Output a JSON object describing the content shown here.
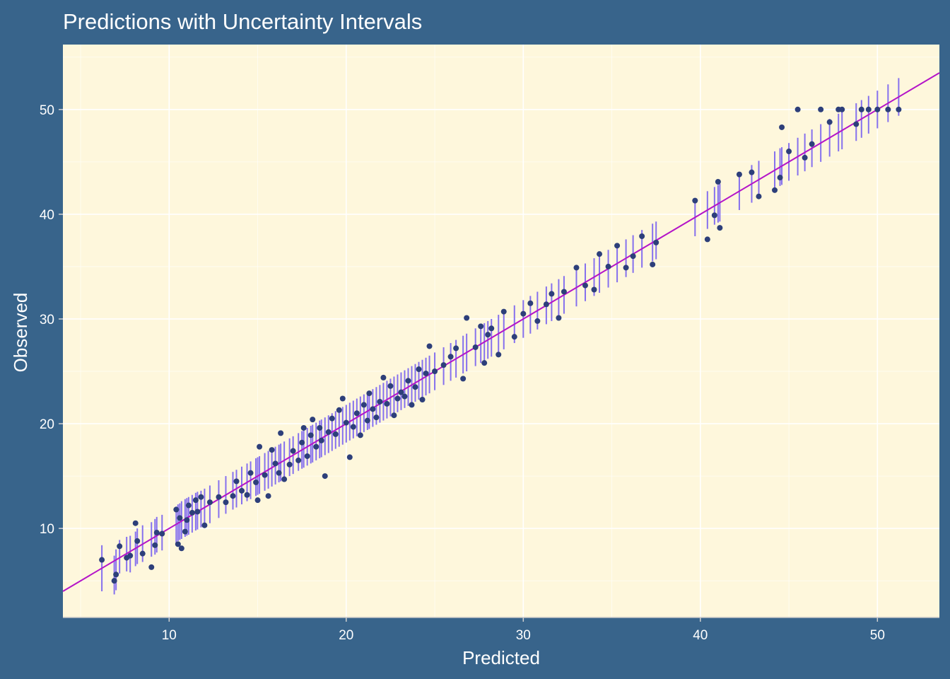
{
  "chart_data": {
    "type": "scatter",
    "title": "Predictions with Uncertainty Intervals",
    "xlabel": "Predicted",
    "ylabel": "Observed",
    "xlim": [
      4.0,
      53.5
    ],
    "ylim": [
      1.5,
      56.2
    ],
    "x_ticks": [
      10,
      20,
      30,
      40,
      50
    ],
    "y_ticks": [
      10,
      20,
      30,
      40,
      50
    ],
    "grid": true,
    "legend": "none",
    "colors": {
      "background": "#38648b",
      "panel": "#fef7dc",
      "grid": "#ffffff",
      "points": "#2d3f7a",
      "intervals": "#8570ee",
      "reference_line": "#b414c8"
    },
    "reference_line": {
      "slope": 1,
      "intercept": 0
    },
    "interval_halfwidth_note_free": true,
    "points": [
      [
        6.2,
        7.0,
        4.0,
        8.4
      ],
      [
        6.9,
        5.0,
        3.7,
        7.4
      ],
      [
        7.0,
        5.6,
        4.1,
        8.0
      ],
      [
        7.2,
        8.3,
        5.7,
        8.9
      ],
      [
        7.6,
        7.2,
        5.9,
        9.2
      ],
      [
        7.8,
        7.4,
        5.8,
        9.3
      ],
      [
        8.1,
        10.5,
        6.4,
        9.7
      ],
      [
        8.2,
        8.8,
        6.6,
        10.0
      ],
      [
        8.5,
        7.6,
        6.8,
        10.3
      ],
      [
        9.0,
        6.3,
        7.3,
        10.6
      ],
      [
        9.2,
        8.4,
        7.5,
        10.9
      ],
      [
        9.3,
        9.6,
        7.7,
        11.1
      ],
      [
        9.6,
        9.5,
        7.9,
        11.3
      ],
      [
        10.4,
        11.8,
        8.6,
        12.1
      ],
      [
        10.5,
        8.5,
        8.8,
        12.3
      ],
      [
        10.6,
        11.0,
        8.9,
        12.4
      ],
      [
        10.7,
        8.1,
        9.0,
        12.6
      ],
      [
        10.9,
        9.7,
        9.2,
        12.8
      ],
      [
        11.0,
        10.8,
        9.3,
        12.9
      ],
      [
        11.1,
        12.2,
        9.4,
        13.0
      ],
      [
        11.3,
        11.5,
        9.6,
        13.2
      ],
      [
        11.5,
        12.7,
        9.8,
        13.4
      ],
      [
        11.6,
        11.6,
        9.9,
        13.5
      ],
      [
        11.8,
        13.0,
        10.1,
        13.6
      ],
      [
        12.0,
        10.3,
        10.3,
        13.8
      ],
      [
        12.3,
        12.5,
        10.5,
        14.1
      ],
      [
        12.8,
        13.0,
        11.0,
        14.6
      ],
      [
        13.2,
        12.5,
        11.4,
        15.0
      ],
      [
        13.6,
        13.1,
        11.8,
        15.4
      ],
      [
        13.8,
        14.5,
        12.0,
        15.6
      ],
      [
        14.1,
        13.6,
        12.3,
        15.9
      ],
      [
        14.4,
        13.2,
        12.6,
        16.2
      ],
      [
        14.6,
        15.3,
        12.8,
        16.4
      ],
      [
        14.9,
        14.4,
        13.1,
        16.7
      ],
      [
        15.0,
        12.7,
        13.2,
        16.8
      ],
      [
        15.1,
        17.8,
        13.3,
        16.9
      ],
      [
        15.4,
        15.1,
        13.6,
        17.2
      ],
      [
        15.6,
        13.1,
        13.8,
        17.4
      ],
      [
        15.8,
        17.5,
        14.0,
        17.6
      ],
      [
        16.0,
        16.2,
        14.2,
        17.8
      ],
      [
        16.2,
        15.3,
        14.4,
        18.0
      ],
      [
        16.3,
        19.1,
        14.5,
        18.1
      ],
      [
        16.5,
        14.7,
        14.7,
        18.3
      ],
      [
        16.8,
        16.1,
        15.0,
        18.6
      ],
      [
        17.0,
        17.4,
        15.2,
        18.8
      ],
      [
        17.3,
        16.5,
        15.5,
        19.1
      ],
      [
        17.5,
        18.2,
        15.7,
        19.3
      ],
      [
        17.6,
        19.6,
        15.8,
        19.4
      ],
      [
        17.8,
        16.9,
        16.0,
        19.6
      ],
      [
        18.0,
        18.9,
        16.2,
        19.8
      ],
      [
        18.1,
        20.4,
        16.3,
        19.9
      ],
      [
        18.3,
        17.8,
        16.5,
        20.1
      ],
      [
        18.5,
        19.6,
        16.7,
        20.3
      ],
      [
        18.6,
        18.4,
        16.8,
        20.4
      ],
      [
        18.8,
        15.0,
        17.0,
        20.6
      ],
      [
        19.0,
        19.2,
        17.2,
        20.8
      ],
      [
        19.2,
        20.5,
        17.4,
        21.0
      ],
      [
        19.4,
        19.0,
        17.6,
        21.2
      ],
      [
        19.6,
        21.3,
        17.8,
        21.4
      ],
      [
        19.8,
        22.4,
        18.0,
        21.6
      ],
      [
        20.0,
        20.1,
        18.2,
        21.8
      ],
      [
        20.2,
        16.8,
        18.4,
        22.0
      ],
      [
        20.4,
        19.7,
        18.6,
        22.2
      ],
      [
        20.6,
        21.0,
        18.8,
        22.4
      ],
      [
        20.8,
        18.9,
        19.0,
        22.6
      ],
      [
        21.0,
        21.8,
        19.2,
        22.8
      ],
      [
        21.2,
        20.3,
        19.4,
        23.0
      ],
      [
        21.3,
        22.9,
        19.5,
        23.1
      ],
      [
        21.5,
        21.4,
        19.7,
        23.3
      ],
      [
        21.7,
        20.6,
        19.9,
        23.5
      ],
      [
        21.9,
        22.1,
        20.1,
        23.7
      ],
      [
        22.1,
        24.4,
        20.3,
        23.9
      ],
      [
        22.3,
        21.9,
        20.5,
        24.1
      ],
      [
        22.5,
        23.6,
        20.7,
        24.3
      ],
      [
        22.7,
        20.8,
        20.9,
        24.5
      ],
      [
        22.9,
        22.4,
        21.1,
        24.7
      ],
      [
        23.1,
        23.0,
        21.3,
        24.9
      ],
      [
        23.3,
        22.6,
        21.5,
        25.1
      ],
      [
        23.5,
        24.1,
        21.7,
        25.3
      ],
      [
        23.7,
        21.8,
        21.9,
        25.5
      ],
      [
        23.9,
        23.5,
        22.1,
        25.7
      ],
      [
        24.1,
        25.2,
        22.3,
        25.9
      ],
      [
        24.3,
        22.3,
        22.5,
        26.1
      ],
      [
        24.5,
        24.8,
        22.7,
        26.3
      ],
      [
        24.7,
        27.4,
        22.9,
        26.5
      ],
      [
        25.0,
        25.0,
        23.2,
        26.8
      ],
      [
        25.5,
        25.6,
        23.7,
        27.3
      ],
      [
        25.9,
        26.4,
        24.1,
        27.7
      ],
      [
        26.2,
        27.2,
        24.4,
        28.0
      ],
      [
        26.6,
        24.3,
        24.8,
        28.4
      ],
      [
        26.8,
        30.1,
        25.0,
        28.6
      ],
      [
        27.3,
        27.3,
        25.5,
        29.1
      ],
      [
        27.6,
        29.3,
        25.8,
        29.4
      ],
      [
        27.8,
        25.8,
        26.0,
        29.6
      ],
      [
        28.0,
        28.5,
        26.2,
        29.8
      ],
      [
        28.2,
        29.1,
        26.4,
        30.0
      ],
      [
        28.6,
        26.6,
        26.8,
        30.4
      ],
      [
        28.9,
        30.7,
        27.1,
        30.7
      ],
      [
        29.5,
        28.3,
        27.7,
        31.3
      ],
      [
        30.0,
        30.5,
        28.2,
        31.8
      ],
      [
        30.4,
        31.5,
        28.6,
        32.2
      ],
      [
        30.8,
        29.8,
        29.0,
        32.6
      ],
      [
        31.3,
        31.4,
        29.5,
        33.1
      ],
      [
        31.6,
        32.4,
        29.8,
        33.4
      ],
      [
        32.0,
        30.1,
        30.2,
        33.8
      ],
      [
        32.3,
        32.6,
        30.5,
        34.1
      ],
      [
        33.0,
        34.9,
        31.2,
        34.8
      ],
      [
        33.5,
        33.2,
        31.7,
        35.3
      ],
      [
        34.0,
        32.8,
        32.2,
        35.8
      ],
      [
        34.3,
        36.2,
        32.5,
        36.1
      ],
      [
        34.8,
        35.0,
        33.0,
        36.6
      ],
      [
        35.3,
        37.0,
        33.5,
        37.1
      ],
      [
        35.8,
        34.9,
        34.0,
        37.6
      ],
      [
        36.2,
        36.0,
        34.4,
        38.0
      ],
      [
        36.7,
        37.9,
        34.9,
        38.5
      ],
      [
        37.3,
        35.2,
        35.5,
        39.1
      ],
      [
        37.5,
        37.3,
        35.7,
        39.3
      ],
      [
        39.7,
        41.3,
        37.9,
        41.5
      ],
      [
        40.4,
        37.6,
        38.6,
        42.2
      ],
      [
        40.8,
        39.9,
        39.0,
        42.6
      ],
      [
        41.0,
        43.1,
        39.2,
        42.8
      ],
      [
        41.1,
        38.7,
        39.3,
        42.9
      ],
      [
        42.2,
        43.8,
        40.4,
        44.0
      ],
      [
        42.9,
        44.0,
        41.1,
        44.7
      ],
      [
        43.3,
        41.7,
        41.5,
        45.1
      ],
      [
        44.2,
        42.3,
        42.4,
        46.0
      ],
      [
        44.5,
        43.5,
        42.7,
        46.3
      ],
      [
        44.6,
        48.3,
        42.8,
        46.4
      ],
      [
        45.0,
        46.0,
        43.2,
        46.8
      ],
      [
        45.5,
        50.0,
        43.7,
        47.3
      ],
      [
        45.9,
        45.4,
        44.1,
        47.7
      ],
      [
        46.3,
        46.7,
        44.5,
        48.1
      ],
      [
        46.8,
        50.0,
        45.0,
        48.6
      ],
      [
        47.3,
        48.8,
        45.5,
        49.1
      ],
      [
        47.8,
        50.0,
        46.0,
        49.6
      ],
      [
        48.0,
        50.0,
        46.2,
        49.8
      ],
      [
        48.8,
        48.6,
        47.0,
        50.6
      ],
      [
        49.1,
        50.0,
        47.3,
        50.9
      ],
      [
        49.5,
        50.0,
        47.7,
        51.3
      ],
      [
        50.0,
        50.0,
        48.2,
        51.8
      ],
      [
        50.6,
        50.0,
        48.8,
        52.4
      ],
      [
        51.2,
        50.0,
        49.4,
        53.0
      ]
    ]
  }
}
